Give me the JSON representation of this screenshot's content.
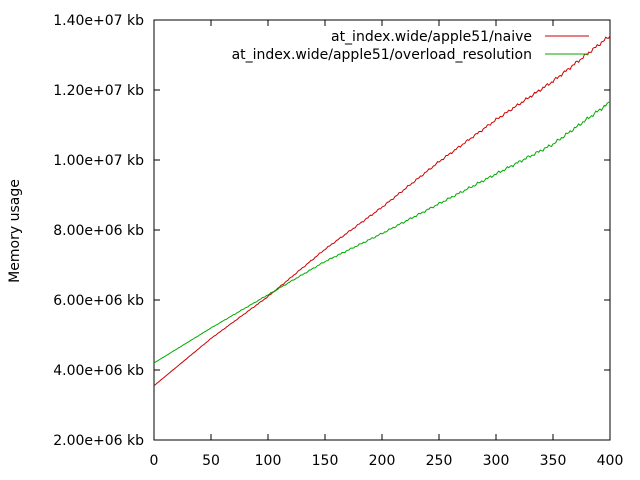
{
  "chart_data": {
    "type": "line",
    "title": "",
    "xlabel": "",
    "ylabel": "Memory usage",
    "xlim": [
      0,
      400
    ],
    "ylim": [
      2000000,
      14000000
    ],
    "x_ticks": [
      0,
      50,
      100,
      150,
      200,
      250,
      300,
      350,
      400
    ],
    "x_tick_labels": [
      "0",
      "50",
      "100",
      "150",
      "200",
      "250",
      "300",
      "350",
      "400"
    ],
    "y_ticks": [
      2000000,
      4000000,
      6000000,
      8000000,
      10000000,
      12000000,
      14000000
    ],
    "y_tick_labels": [
      "2.00e+06 kb",
      "4.00e+06 kb",
      "6.00e+06 kb",
      "8.00e+06 kb",
      "1.00e+07 kb",
      "1.20e+07 kb",
      "1.40e+07 kb"
    ],
    "grid": false,
    "legend_position": "top-right",
    "series": [
      {
        "name": "at_index.wide/apple51/naive",
        "color": "#cc0000",
        "x": [
          0,
          50,
          100,
          150,
          200,
          250,
          300,
          350,
          400
        ],
        "y": [
          3550000,
          4900000,
          6100000,
          7450000,
          8650000,
          9950000,
          11150000,
          12250000,
          13550000
        ]
      },
      {
        "name": "at_index.wide/apple51/overload_resolution",
        "color": "#00aa00",
        "x": [
          0,
          50,
          100,
          150,
          200,
          250,
          300,
          350,
          400
        ],
        "y": [
          4200000,
          5200000,
          6150000,
          7100000,
          7900000,
          8750000,
          9600000,
          10450000,
          11650000
        ]
      }
    ]
  }
}
